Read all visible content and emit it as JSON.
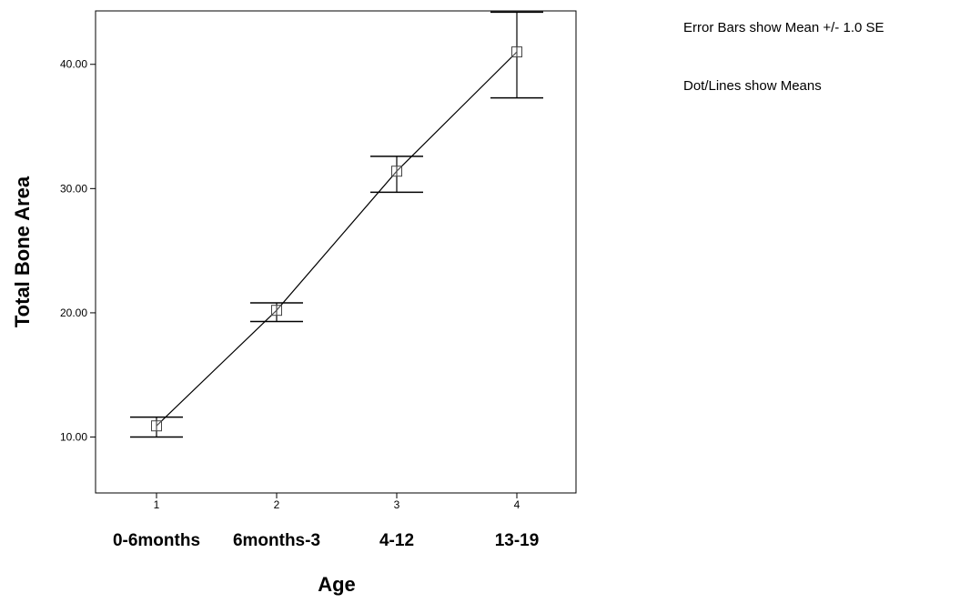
{
  "chart_data": {
    "type": "line",
    "title": "",
    "xlabel": "Age",
    "ylabel": "Total Bone Area",
    "x_ticks": [
      "1",
      "2",
      "3",
      "4"
    ],
    "categories": [
      "0-6months",
      "6months-3",
      "4-12",
      "13-19"
    ],
    "ylim": [
      5.5,
      44.3
    ],
    "y_ticks": [
      "10.00",
      "20.00",
      "30.00",
      "40.00"
    ],
    "y_tick_values": [
      10,
      20,
      30,
      40
    ],
    "grid": false,
    "series": [
      {
        "values": [
          10.9,
          20.2,
          31.4,
          41.0
        ],
        "error_lower": [
          10.0,
          19.3,
          29.7,
          37.3
        ],
        "error_upper": [
          11.6,
          20.8,
          32.6,
          44.2
        ]
      }
    ],
    "annotations": [
      "Error Bars show Mean +/- 1.0 SE",
      "Dot/Lines show Means"
    ]
  }
}
